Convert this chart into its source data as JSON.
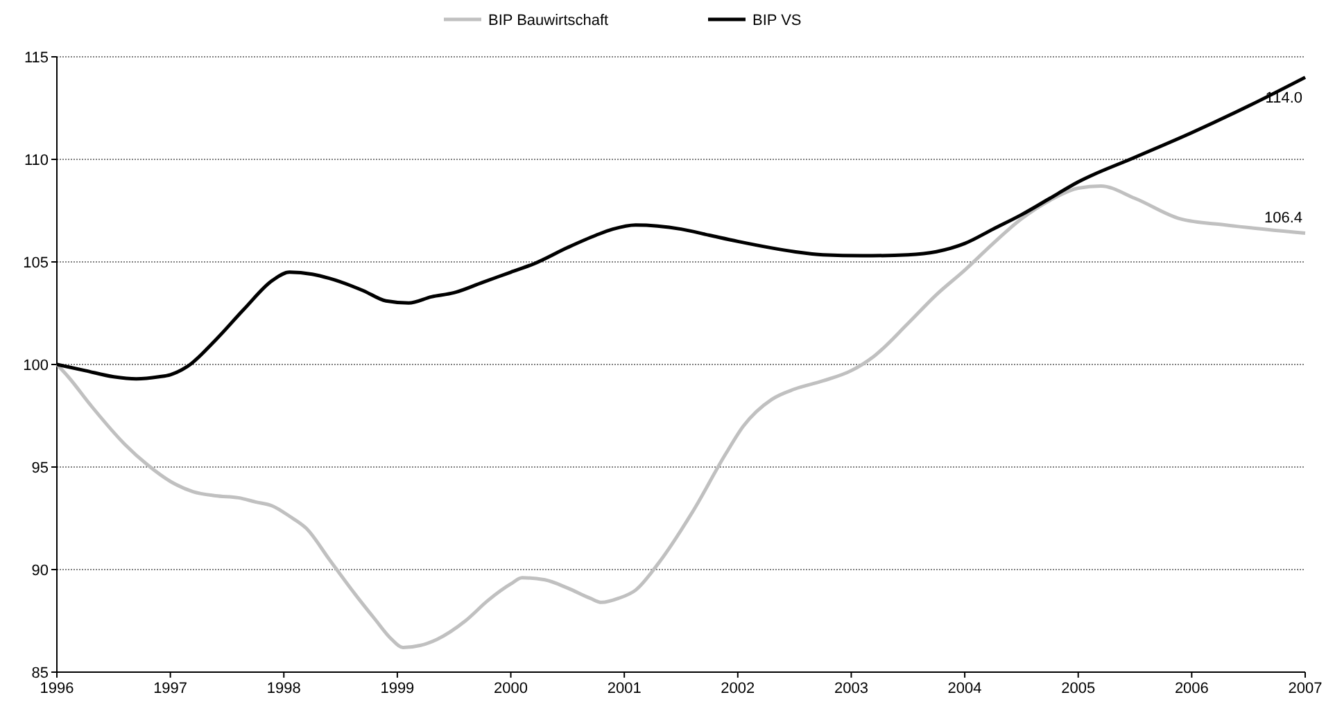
{
  "chart_data": {
    "type": "line",
    "legend": "top",
    "grid": "y",
    "line_style": "solid",
    "marker": "none",
    "xlim": [
      1996,
      2007
    ],
    "xticks": [
      1996,
      1997,
      1998,
      1999,
      2000,
      2001,
      2002,
      2003,
      2004,
      2005,
      2006,
      2007
    ],
    "ylim": [
      85,
      115
    ],
    "yticks": [
      85,
      90,
      95,
      100,
      105,
      110,
      115
    ],
    "series": [
      {
        "name": "BIP Bauwirtschaft",
        "color": "#c0c0c0",
        "x": [
          1996,
          1996.1,
          1996.3,
          1996.6,
          1996.8,
          1997,
          1997.2,
          1997.4,
          1997.6,
          1997.75,
          1997.9,
          1998.05,
          1998.2,
          1998.4,
          1998.6,
          1998.8,
          1998.95,
          1999.05,
          1999.2,
          1999.35,
          1999.6,
          1999.8,
          2000,
          2000.1,
          2000.3,
          2000.5,
          2000.7,
          2000.8,
          2000.95,
          2001.1,
          2001.3,
          2001.6,
          2001.9,
          2002.05,
          2002.3,
          2002.5,
          2002.75,
          2003,
          2003.2,
          2003.5,
          2003.75,
          2004,
          2004.25,
          2004.5,
          2004.75,
          2005,
          2005.2,
          2005.5,
          2005.9,
          2006.3,
          2007
        ],
        "values": [
          100,
          99.4,
          98,
          96.1,
          95.1,
          94.3,
          93.8,
          93.6,
          93.5,
          93.3,
          93.1,
          92.6,
          92,
          90.5,
          89,
          87.6,
          86.6,
          86.2,
          86.3,
          86.6,
          87.5,
          88.5,
          89.3,
          89.6,
          89.5,
          89.1,
          88.6,
          88.4,
          88.6,
          89,
          90.3,
          92.8,
          95.7,
          97,
          98.3,
          98.8,
          99.2,
          99.7,
          100.4,
          102,
          103.4,
          104.6,
          105.9,
          107.1,
          108,
          108.6,
          108.7,
          108.1,
          107.1,
          106.8,
          106.4
        ]
      },
      {
        "name": "BIP VS",
        "color": "#000000",
        "x": [
          1996,
          1996.25,
          1996.5,
          1996.7,
          1996.9,
          1997,
          1997.15,
          1997.4,
          1997.65,
          1997.9,
          1998.05,
          1998.25,
          1998.4,
          1998.7,
          1998.9,
          1999.1,
          1999.3,
          1999.5,
          1999.75,
          2000,
          2000.2,
          2000.5,
          2000.75,
          2000.9,
          2001.1,
          2001.5,
          2001.75,
          2002,
          2002.5,
          2002.75,
          2003.1,
          2003.5,
          2003.75,
          2004,
          2004.25,
          2004.5,
          2004.75,
          2005,
          2005.5,
          2006,
          2006.5,
          2007
        ],
        "values": [
          100,
          99.7,
          99.4,
          99.3,
          99.4,
          99.5,
          99.9,
          101.2,
          102.7,
          104.1,
          104.5,
          104.4,
          104.2,
          103.6,
          103.1,
          103,
          103.3,
          103.5,
          104,
          104.5,
          104.9,
          105.7,
          106.3,
          106.6,
          106.8,
          106.6,
          106.3,
          106,
          105.5,
          105.35,
          105.3,
          105.35,
          105.5,
          105.9,
          106.6,
          107.3,
          108.1,
          108.9,
          110.1,
          111.3,
          112.6,
          114
        ]
      }
    ],
    "annotations": [
      {
        "text": "114.0",
        "x": 2007,
        "y": 114
      },
      {
        "text": "106.4",
        "x": 2007,
        "y": 106.4
      }
    ]
  }
}
